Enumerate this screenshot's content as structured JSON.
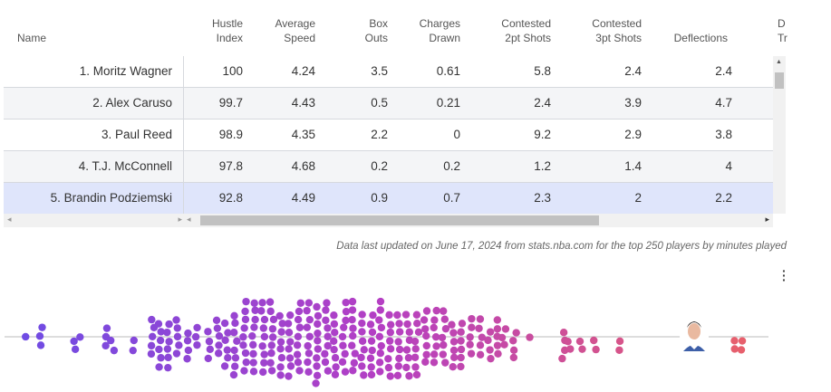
{
  "table": {
    "headers": {
      "name": "Name",
      "hustle": [
        "Hustle",
        "Index"
      ],
      "speed": [
        "Average",
        "Speed"
      ],
      "box": [
        "Box",
        "Outs"
      ],
      "charges": [
        "Charges",
        "Drawn"
      ],
      "c2": [
        "Contested",
        "2pt Shots"
      ],
      "c3": [
        "Contested",
        "3pt Shots"
      ],
      "defl": "Deflections",
      "cut": [
        "D",
        "Tr"
      ]
    },
    "rows": [
      {
        "name": "1. Moritz Wagner",
        "hustle": "100",
        "speed": "4.24",
        "box": "3.5",
        "charges": "0.61",
        "c2": "5.8",
        "c3": "2.4",
        "defl": "2.4"
      },
      {
        "name": "2. Alex Caruso",
        "hustle": "99.7",
        "speed": "4.43",
        "box": "0.5",
        "charges": "0.21",
        "c2": "2.4",
        "c3": "3.9",
        "defl": "4.7"
      },
      {
        "name": "3. Paul Reed",
        "hustle": "98.9",
        "speed": "4.35",
        "box": "2.2",
        "charges": "0",
        "c2": "9.2",
        "c3": "2.9",
        "defl": "3.8"
      },
      {
        "name": "4. T.J. McConnell",
        "hustle": "97.8",
        "speed": "4.68",
        "box": "0.2",
        "charges": "0.2",
        "c2": "1.2",
        "c3": "1.4",
        "defl": "4"
      },
      {
        "name": "5. Brandin Podziemski",
        "hustle": "92.8",
        "speed": "4.49",
        "box": "0.9",
        "charges": "0.7",
        "c2": "2.3",
        "c3": "2",
        "defl": "2.2"
      }
    ],
    "highlighted_row": 4
  },
  "note": "Data last updated on June 17, 2024 from stats.nba.com for the top 250 players by minutes played",
  "swarm": {
    "colors": {
      "low": "#6b4de6",
      "mid": "#b43fc4",
      "high": "#e8606a"
    },
    "highlight_player": "Brandin Podziemski"
  }
}
